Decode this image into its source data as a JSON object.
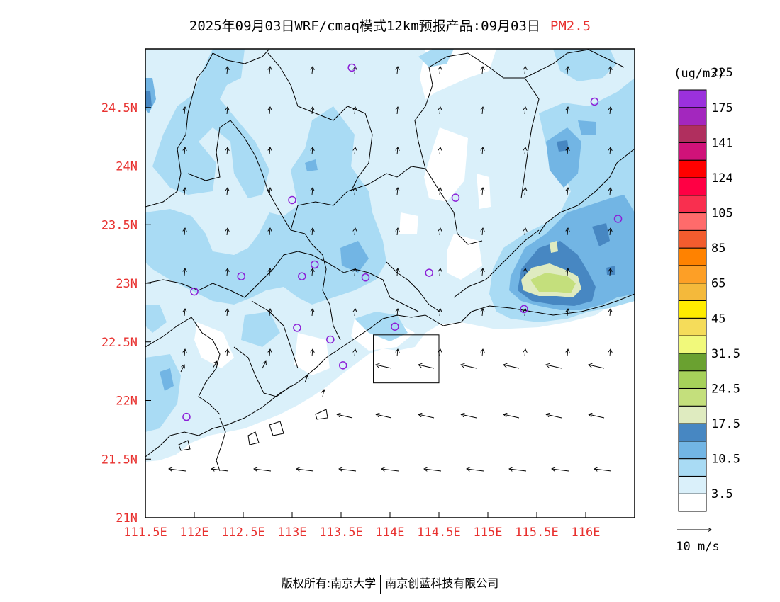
{
  "title": {
    "main": "2025年09月03日WRF/cmaq模式12km预报产品:09月03日",
    "species": "PM2.5"
  },
  "map": {
    "lon_range": [
      111.5,
      116.5
    ],
    "lat_range": [
      21.0,
      25.0
    ],
    "x_ticks": [
      {
        "value": 111.5,
        "label": "111.5E"
      },
      {
        "value": 112.0,
        "label": "112E"
      },
      {
        "value": 112.5,
        "label": "112.5E"
      },
      {
        "value": 113.0,
        "label": "113E"
      },
      {
        "value": 113.5,
        "label": "113.5E"
      },
      {
        "value": 114.0,
        "label": "114E"
      },
      {
        "value": 114.5,
        "label": "114.5E"
      },
      {
        "value": 115.0,
        "label": "115E"
      },
      {
        "value": 115.5,
        "label": "115.5E"
      },
      {
        "value": 116.0,
        "label": "116E"
      }
    ],
    "y_ticks": [
      {
        "value": 21.0,
        "label": "21N"
      },
      {
        "value": 21.5,
        "label": "21.5N"
      },
      {
        "value": 22.0,
        "label": "22N"
      },
      {
        "value": 22.5,
        "label": "22.5N"
      },
      {
        "value": 23.0,
        "label": "23N"
      },
      {
        "value": 23.5,
        "label": "23.5N"
      },
      {
        "value": 24.0,
        "label": "24N"
      },
      {
        "value": 24.5,
        "label": "24.5N"
      }
    ],
    "stations": [
      {
        "lon": 113.61,
        "lat": 24.84
      },
      {
        "lon": 116.09,
        "lat": 24.55
      },
      {
        "lon": 114.67,
        "lat": 23.73
      },
      {
        "lon": 116.33,
        "lat": 23.55
      },
      {
        "lon": 113.0,
        "lat": 23.71
      },
      {
        "lon": 113.23,
        "lat": 23.16
      },
      {
        "lon": 113.1,
        "lat": 23.06
      },
      {
        "lon": 112.48,
        "lat": 23.06
      },
      {
        "lon": 113.75,
        "lat": 23.05
      },
      {
        "lon": 114.4,
        "lat": 23.09
      },
      {
        "lon": 112.0,
        "lat": 22.93
      },
      {
        "lon": 115.37,
        "lat": 22.78
      },
      {
        "lon": 113.05,
        "lat": 22.62
      },
      {
        "lon": 113.39,
        "lat": 22.52
      },
      {
        "lon": 114.05,
        "lat": 22.63
      },
      {
        "lon": 113.52,
        "lat": 22.3
      },
      {
        "lon": 111.92,
        "lat": 21.86
      }
    ],
    "hk_box": {
      "lon": [
        113.83,
        114.5
      ],
      "lat": [
        22.15,
        22.56
      ]
    },
    "colors": {
      "c1": "#daf0fa",
      "c2": "#a9dbf4",
      "c3": "#72b5e4",
      "c4": "#4787c2",
      "c5": "#dfebc0",
      "c6": "#c4df7c",
      "ocean": "#ffffff",
      "station": "#8c1fd7"
    }
  },
  "colorbar": {
    "unit": "(ug/m3)",
    "colors": [
      "#ffffff",
      "#daf0fa",
      "#a9dbf4",
      "#72b5e4",
      "#4787c2",
      "#dfebc0",
      "#c4df7c",
      "#a6d15a",
      "#6aa130",
      "#f1f97b",
      "#f5dc5a",
      "#ffec00",
      "#f4b93b",
      "#fd9f26",
      "#ff8200",
      "#f25c2e",
      "#ff6b6b",
      "#f92f4f",
      "#ff0044",
      "#ff0000",
      "#d01279",
      "#b02f5e",
      "#a327be",
      "#9b31dd"
    ],
    "labels": [
      "3.5",
      "10.5",
      "17.5",
      "24.5",
      "31.5",
      "45",
      "65",
      "85",
      "105",
      "124",
      "141",
      "175",
      "225"
    ]
  },
  "wind_legend": {
    "label": "10 m/s"
  },
  "footer": {
    "left": "版权所有:南京大学",
    "right": "南京创蓝科技有限公司"
  }
}
